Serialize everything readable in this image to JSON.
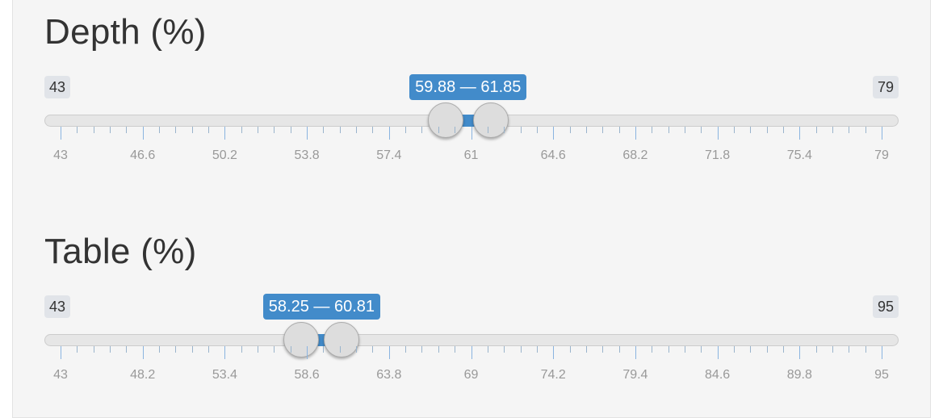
{
  "sliders": [
    {
      "title": "Depth (%)",
      "min": 43,
      "max": 79,
      "min_label": "43",
      "max_label": "79",
      "from": 59.88,
      "to": 61.85,
      "range_label": "59.88 — 61.85",
      "grid_labels": [
        "43",
        "46.6",
        "50.2",
        "53.8",
        "57.4",
        "61",
        "64.6",
        "68.2",
        "71.8",
        "75.4",
        "79"
      ]
    },
    {
      "title": "Table (%)",
      "min": 43,
      "max": 95,
      "min_label": "43",
      "max_label": "95",
      "from": 58.25,
      "to": 60.81,
      "range_label": "58.25 — 60.81",
      "grid_labels": [
        "43",
        "48.2",
        "53.4",
        "58.6",
        "63.8",
        "69",
        "74.2",
        "79.4",
        "84.6",
        "89.8",
        "95"
      ]
    }
  ],
  "colors": {
    "accent": "#428bca",
    "panel_bg": "#f5f5f5",
    "handle": "#dddddd"
  }
}
